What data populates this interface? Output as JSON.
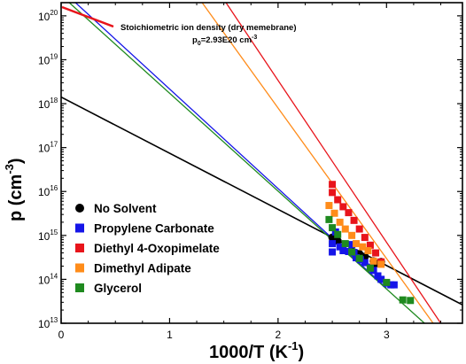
{
  "chart_data": {
    "type": "scatter",
    "xlabel": "1000/T (K",
    "xlabel_sup": "-1",
    "xlabel_close": ")",
    "ylabel": "p (cm",
    "ylabel_sup": "-3",
    "ylabel_close": ")",
    "xlim": [
      0,
      3.7
    ],
    "ylim_log10": [
      13,
      20.3
    ],
    "y_scale": "log",
    "x_ticks": [
      {
        "value": 0,
        "label": "0"
      },
      {
        "value": 1,
        "label": "1"
      },
      {
        "value": 2,
        "label": "2"
      },
      {
        "value": 3,
        "label": "3"
      }
    ],
    "y_ticks": [
      {
        "exp": 13,
        "base": "10",
        "sup": "13"
      },
      {
        "exp": 14,
        "base": "10",
        "sup": "14"
      },
      {
        "exp": 15,
        "base": "10",
        "sup": "15"
      },
      {
        "exp": 16,
        "base": "10",
        "sup": "16"
      },
      {
        "exp": 17,
        "base": "10",
        "sup": "17"
      },
      {
        "exp": 18,
        "base": "10",
        "sup": "18"
      },
      {
        "exp": 19,
        "base": "10",
        "sup": "19"
      },
      {
        "exp": 20,
        "base": "10",
        "sup": "20"
      }
    ],
    "annotation": {
      "line1": "Stoichiometric ion density (dry memebrane)",
      "line2_base": "p",
      "line2_sub": "0",
      "line2_rest": "=2.93E20 cm",
      "line2_sup": "-3",
      "arrow_color": "#e8141b",
      "point": {
        "x": 0.0,
        "log10y": 20.467
      }
    },
    "legend_position": "bottom-left",
    "series": [
      {
        "name": "No Solvent",
        "color": "#000000",
        "marker": "circle",
        "fit": {
          "x0": 0.0,
          "y0_log10": 18.15,
          "x1": 3.7,
          "y1_log10": 13.42
        },
        "points": [
          {
            "x": 2.5,
            "y": 900000000000000.0
          },
          {
            "x": 2.55,
            "y": 750000000000000.0
          },
          {
            "x": 2.75,
            "y": 380000000000000.0
          },
          {
            "x": 2.8,
            "y": 330000000000000.0
          },
          {
            "x": 2.88,
            "y": 260000000000000.0
          },
          {
            "x": 2.9,
            "y": 230000000000000.0
          },
          {
            "x": 2.95,
            "y": 250000000000000.0
          }
        ]
      },
      {
        "name": "Propylene Carbonate",
        "color": "#1515e8",
        "marker": "square",
        "fit": {
          "x0": 0.0,
          "y0_log10": 20.6,
          "x1": 3.0,
          "y1_log10": 13.8
        },
        "points": [
          {
            "x": 2.5,
            "y": 420000000000000.0
          },
          {
            "x": 2.5,
            "y": 650000000000000.0
          },
          {
            "x": 2.53,
            "y": 1200000000000000.0
          },
          {
            "x": 2.57,
            "y": 550000000000000.0
          },
          {
            "x": 2.6,
            "y": 450000000000000.0
          },
          {
            "x": 2.65,
            "y": 430000000000000.0
          },
          {
            "x": 2.68,
            "y": 620000000000000.0
          },
          {
            "x": 2.7,
            "y": 410000000000000.0
          },
          {
            "x": 2.72,
            "y": 310000000000000.0
          },
          {
            "x": 2.76,
            "y": 280000000000000.0
          },
          {
            "x": 2.8,
            "y": 240000000000000.0
          },
          {
            "x": 2.85,
            "y": 190000000000000.0
          },
          {
            "x": 2.88,
            "y": 160000000000000.0
          },
          {
            "x": 2.92,
            "y": 120000000000000.0
          },
          {
            "x": 2.95,
            "y": 100000000000000.0
          },
          {
            "x": 3.0,
            "y": 82000000000000.0
          },
          {
            "x": 3.04,
            "y": 75000000000000.0
          },
          {
            "x": 3.07,
            "y": 75000000000000.0
          }
        ]
      },
      {
        "name": "Diethyl 4-Oxopimelate",
        "color": "#e8141b",
        "marker": "square",
        "fit": {
          "x0": 1.52,
          "y0_log10": 20.3,
          "x1": 3.5,
          "y1_log10": 13.0
        },
        "points": [
          {
            "x": 2.5,
            "y": 1.45e+16
          },
          {
            "x": 2.5,
            "y": 9500000000000000.0
          },
          {
            "x": 2.55,
            "y": 6500000000000000.0
          },
          {
            "x": 2.6,
            "y": 4500000000000000.0
          },
          {
            "x": 2.65,
            "y": 3300000000000000.0
          },
          {
            "x": 2.7,
            "y": 2200000000000000.0
          },
          {
            "x": 2.75,
            "y": 1400000000000000.0
          },
          {
            "x": 2.8,
            "y": 900000000000000.0
          },
          {
            "x": 2.85,
            "y": 600000000000000.0
          },
          {
            "x": 2.9,
            "y": 400000000000000.0
          },
          {
            "x": 2.95,
            "y": 250000000000000.0
          }
        ]
      },
      {
        "name": "Dimethyl Adipate",
        "color": "#ff8c1a",
        "marker": "square",
        "fit": {
          "x0": 1.3,
          "y0_log10": 20.3,
          "x1": 3.43,
          "y1_log10": 13.0
        },
        "points": [
          {
            "x": 2.47,
            "y": 4800000000000000.0
          },
          {
            "x": 2.52,
            "y": 3200000000000000.0
          },
          {
            "x": 2.57,
            "y": 2000000000000000.0
          },
          {
            "x": 2.62,
            "y": 1400000000000000.0
          },
          {
            "x": 2.68,
            "y": 1000000000000000.0
          },
          {
            "x": 2.72,
            "y": 650000000000000.0
          },
          {
            "x": 2.78,
            "y": 550000000000000.0
          },
          {
            "x": 2.83,
            "y": 450000000000000.0
          },
          {
            "x": 2.88,
            "y": 260000000000000.0
          },
          {
            "x": 2.95,
            "y": 220000000000000.0
          }
        ]
      },
      {
        "name": "Glycerol",
        "color": "#1f8a1f",
        "marker": "square",
        "fit": {
          "x0": 0.0,
          "y0_log10": 20.467,
          "x1": 3.35,
          "y1_log10": 13.0
        },
        "points": [
          {
            "x": 2.47,
            "y": 2300000000000000.0
          },
          {
            "x": 2.5,
            "y": 1500000000000000.0
          },
          {
            "x": 2.55,
            "y": 1050000000000000.0
          },
          {
            "x": 2.62,
            "y": 650000000000000.0
          },
          {
            "x": 2.68,
            "y": 420000000000000.0
          },
          {
            "x": 2.75,
            "y": 300000000000000.0
          },
          {
            "x": 2.85,
            "y": 180000000000000.0
          },
          {
            "x": 3.0,
            "y": 85000000000000.0
          },
          {
            "x": 3.15,
            "y": 34000000000000.0
          },
          {
            "x": 3.22,
            "y": 33000000000000.0
          }
        ]
      }
    ]
  }
}
